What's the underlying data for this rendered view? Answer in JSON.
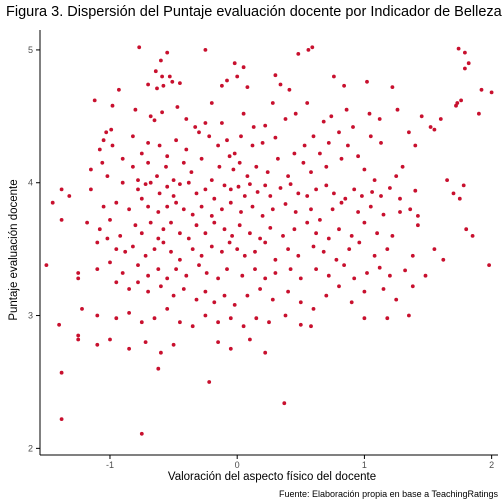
{
  "chart_data": {
    "type": "scatter",
    "title": "Figura 3. Dispersión del Puntaje evaluación docente por Indicador de Belleza",
    "xlabel": "Valoración del aspecto físico del docente",
    "ylabel": "Puntaje evaluación docente",
    "caption": "Fuente: Elaboración propia en base a TeachingRatings",
    "xlim": [
      -1.55,
      2.05
    ],
    "ylim": [
      1.95,
      5.15
    ],
    "x_ticks": [
      -1,
      0,
      1,
      2
    ],
    "y_ticks": [
      2,
      3,
      4,
      5
    ],
    "x_tick_labels": [
      "-1",
      "0",
      "1",
      "2"
    ],
    "y_tick_labels": [
      "2",
      "3",
      "4",
      "5"
    ],
    "grid": false,
    "point_color": "#C8102E",
    "points": [
      [
        -0.25,
        5.0
      ],
      [
        -0.02,
        4.9
      ],
      [
        0.05,
        4.87
      ],
      [
        0.3,
        4.81
      ],
      [
        0.48,
        4.97
      ],
      [
        0.56,
        5.0
      ],
      [
        0.59,
        5.02
      ],
      [
        1.74,
        5.01
      ],
      [
        1.79,
        4.98
      ],
      [
        1.82,
        4.9
      ],
      [
        -0.77,
        5.02
      ],
      [
        -0.55,
        4.98
      ],
      [
        -0.6,
        4.92
      ],
      [
        -0.64,
        4.84
      ],
      [
        -0.59,
        4.8
      ],
      [
        -0.53,
        4.8
      ],
      [
        -0.51,
        4.76
      ],
      [
        -0.58,
        4.73
      ],
      [
        -0.63,
        4.71
      ],
      [
        -0.7,
        4.74
      ],
      [
        -0.12,
        4.73
      ],
      [
        -0.08,
        4.77
      ],
      [
        0.0,
        4.8
      ],
      [
        0.08,
        4.72
      ],
      [
        0.34,
        4.74
      ],
      [
        0.41,
        4.7
      ],
      [
        0.76,
        4.8
      ],
      [
        0.84,
        4.73
      ],
      [
        1.02,
        4.76
      ],
      [
        1.79,
        4.86
      ],
      [
        1.92,
        4.7
      ],
      [
        2.0,
        4.68
      ],
      [
        1.73,
        4.6
      ],
      [
        1.76,
        4.62
      ],
      [
        -0.93,
        4.7
      ],
      [
        -0.45,
        4.75
      ],
      [
        -0.2,
        4.6
      ],
      [
        0.28,
        4.6
      ],
      [
        0.55,
        4.6
      ],
      [
        1.22,
        4.72
      ],
      [
        -1.12,
        4.62
      ],
      [
        -0.98,
        4.58
      ],
      [
        -0.8,
        4.55
      ],
      [
        -0.68,
        4.5
      ],
      [
        -0.65,
        4.47
      ],
      [
        -0.59,
        4.53
      ],
      [
        -0.47,
        4.57
      ],
      [
        -0.4,
        4.48
      ],
      [
        -0.33,
        4.42
      ],
      [
        -0.25,
        4.45
      ],
      [
        -0.12,
        4.45
      ],
      [
        0.05,
        4.52
      ],
      [
        0.13,
        4.42
      ],
      [
        0.22,
        4.43
      ],
      [
        0.38,
        4.48
      ],
      [
        0.46,
        4.52
      ],
      [
        0.68,
        4.46
      ],
      [
        0.74,
        4.5
      ],
      [
        0.86,
        4.55
      ],
      [
        0.91,
        4.42
      ],
      [
        1.04,
        4.52
      ],
      [
        1.12,
        4.48
      ],
      [
        1.26,
        4.55
      ],
      [
        1.45,
        4.5
      ],
      [
        1.52,
        4.42
      ],
      [
        1.6,
        4.48
      ],
      [
        1.72,
        4.58
      ],
      [
        1.9,
        4.52
      ],
      [
        -1.03,
        4.38
      ],
      [
        -1.05,
        4.32
      ],
      [
        -0.99,
        4.4
      ],
      [
        -1.08,
        4.25
      ],
      [
        -0.98,
        4.28
      ],
      [
        -0.82,
        4.35
      ],
      [
        -0.75,
        4.22
      ],
      [
        -0.7,
        4.3
      ],
      [
        -0.61,
        4.28
      ],
      [
        -0.55,
        4.2
      ],
      [
        -0.48,
        4.32
      ],
      [
        -0.4,
        4.25
      ],
      [
        -0.3,
        4.38
      ],
      [
        -0.22,
        4.35
      ],
      [
        -0.15,
        4.28
      ],
      [
        -0.08,
        4.32
      ],
      [
        -0.02,
        4.22
      ],
      [
        0.03,
        4.35
      ],
      [
        0.12,
        4.28
      ],
      [
        0.2,
        4.3
      ],
      [
        0.3,
        4.34
      ],
      [
        0.45,
        4.22
      ],
      [
        0.53,
        4.28
      ],
      [
        0.6,
        4.35
      ],
      [
        0.65,
        4.22
      ],
      [
        0.72,
        4.3
      ],
      [
        0.8,
        4.38
      ],
      [
        0.87,
        4.28
      ],
      [
        0.95,
        4.2
      ],
      [
        1.05,
        4.35
      ],
      [
        1.13,
        4.3
      ],
      [
        1.35,
        4.38
      ],
      [
        1.4,
        4.28
      ],
      [
        1.55,
        4.4
      ],
      [
        -1.15,
        4.1
      ],
      [
        -1.06,
        4.15
      ],
      [
        -1.02,
        4.05
      ],
      [
        -0.9,
        4.18
      ],
      [
        -0.82,
        4.12
      ],
      [
        -0.78,
        4.02
      ],
      [
        -0.7,
        4.15
      ],
      [
        -0.63,
        4.05
      ],
      [
        -0.56,
        4.12
      ],
      [
        -0.5,
        4.02
      ],
      [
        -0.42,
        4.15
      ],
      [
        -0.36,
        4.08
      ],
      [
        -0.28,
        4.18
      ],
      [
        -0.2,
        4.02
      ],
      [
        -0.14,
        4.12
      ],
      [
        -0.06,
        4.2
      ],
      [
        -0.03,
        4.1
      ],
      [
        0.02,
        4.15
      ],
      [
        0.08,
        4.05
      ],
      [
        0.15,
        4.12
      ],
      [
        0.24,
        4.08
      ],
      [
        0.32,
        4.18
      ],
      [
        0.4,
        4.05
      ],
      [
        0.52,
        4.15
      ],
      [
        0.58,
        4.08
      ],
      [
        0.7,
        4.12
      ],
      [
        0.82,
        4.18
      ],
      [
        1.0,
        4.1
      ],
      [
        1.08,
        4.02
      ],
      [
        1.25,
        4.05
      ],
      [
        1.3,
        4.12
      ],
      [
        1.65,
        4.02
      ],
      [
        1.78,
        3.98
      ],
      [
        -1.38,
        3.95
      ],
      [
        -1.32,
        3.9
      ],
      [
        -1.15,
        3.95
      ],
      [
        -0.9,
        4.0
      ],
      [
        -0.78,
        3.95
      ],
      [
        -0.75,
        3.88
      ],
      [
        -0.72,
        3.99
      ],
      [
        -0.68,
        4.0
      ],
      [
        -0.61,
        3.92
      ],
      [
        -0.55,
        3.97
      ],
      [
        -0.5,
        3.9
      ],
      [
        -0.45,
        3.99
      ],
      [
        -0.38,
        4.0
      ],
      [
        -0.32,
        3.92
      ],
      [
        -0.25,
        3.95
      ],
      [
        -0.18,
        3.88
      ],
      [
        -0.1,
        3.98
      ],
      [
        -0.05,
        3.95
      ],
      [
        0.01,
        3.97
      ],
      [
        0.06,
        3.9
      ],
      [
        0.1,
        3.99
      ],
      [
        0.16,
        3.93
      ],
      [
        0.22,
        3.98
      ],
      [
        0.26,
        3.9
      ],
      [
        0.34,
        3.96
      ],
      [
        0.42,
        3.99
      ],
      [
        0.48,
        3.92
      ],
      [
        0.55,
        3.9
      ],
      [
        0.62,
        3.95
      ],
      [
        0.7,
        3.98
      ],
      [
        0.76,
        3.92
      ],
      [
        0.85,
        3.88
      ],
      [
        0.92,
        3.95
      ],
      [
        0.98,
        3.9
      ],
      [
        1.06,
        3.93
      ],
      [
        1.13,
        3.9
      ],
      [
        1.2,
        3.96
      ],
      [
        1.28,
        3.88
      ],
      [
        1.4,
        3.94
      ],
      [
        1.7,
        3.92
      ],
      [
        1.75,
        3.88
      ],
      [
        -1.45,
        3.85
      ],
      [
        -1.05,
        3.82
      ],
      [
        -0.95,
        3.85
      ],
      [
        -0.85,
        3.8
      ],
      [
        -0.7,
        3.82
      ],
      [
        -0.62,
        3.78
      ],
      [
        -0.55,
        3.82
      ],
      [
        -0.48,
        3.85
      ],
      [
        -0.42,
        3.8
      ],
      [
        -0.35,
        3.76
      ],
      [
        -0.28,
        3.82
      ],
      [
        -0.2,
        3.75
      ],
      [
        -0.12,
        3.8
      ],
      [
        -0.05,
        3.85
      ],
      [
        0.03,
        3.78
      ],
      [
        0.12,
        3.82
      ],
      [
        0.2,
        3.75
      ],
      [
        0.28,
        3.8
      ],
      [
        0.38,
        3.84
      ],
      [
        0.46,
        3.78
      ],
      [
        0.58,
        3.8
      ],
      [
        0.65,
        3.72
      ],
      [
        0.75,
        3.8
      ],
      [
        0.82,
        3.85
      ],
      [
        0.95,
        3.78
      ],
      [
        1.05,
        3.82
      ],
      [
        1.15,
        3.76
      ],
      [
        1.28,
        3.78
      ],
      [
        1.36,
        3.8
      ],
      [
        1.42,
        3.75
      ],
      [
        -1.38,
        3.72
      ],
      [
        -1.18,
        3.7
      ],
      [
        -1.08,
        3.65
      ],
      [
        -1.0,
        3.72
      ],
      [
        -0.92,
        3.6
      ],
      [
        -0.8,
        3.68
      ],
      [
        -0.75,
        3.62
      ],
      [
        -0.68,
        3.7
      ],
      [
        -0.62,
        3.58
      ],
      [
        -0.58,
        3.65
      ],
      [
        -0.52,
        3.7
      ],
      [
        -0.45,
        3.62
      ],
      [
        -0.38,
        3.58
      ],
      [
        -0.32,
        3.68
      ],
      [
        -0.25,
        3.62
      ],
      [
        -0.18,
        3.7
      ],
      [
        -0.1,
        3.65
      ],
      [
        -0.04,
        3.6
      ],
      [
        0.02,
        3.68
      ],
      [
        0.1,
        3.62
      ],
      [
        0.18,
        3.58
      ],
      [
        0.26,
        3.66
      ],
      [
        0.36,
        3.6
      ],
      [
        0.45,
        3.65
      ],
      [
        0.55,
        3.7
      ],
      [
        0.62,
        3.62
      ],
      [
        0.72,
        3.58
      ],
      [
        0.8,
        3.65
      ],
      [
        0.9,
        3.6
      ],
      [
        1.0,
        3.7
      ],
      [
        1.1,
        3.62
      ],
      [
        1.22,
        3.6
      ],
      [
        1.42,
        3.68
      ],
      [
        1.8,
        3.65
      ],
      [
        -1.1,
        3.55
      ],
      [
        -1.02,
        3.58
      ],
      [
        -0.95,
        3.5
      ],
      [
        -0.88,
        3.48
      ],
      [
        -0.82,
        3.52
      ],
      [
        -0.72,
        3.45
      ],
      [
        -0.65,
        3.5
      ],
      [
        -0.58,
        3.55
      ],
      [
        -0.52,
        3.48
      ],
      [
        -0.45,
        3.42
      ],
      [
        -0.35,
        3.5
      ],
      [
        -0.28,
        3.45
      ],
      [
        -0.2,
        3.52
      ],
      [
        -0.12,
        3.48
      ],
      [
        -0.06,
        3.55
      ],
      [
        0.0,
        3.5
      ],
      [
        0.06,
        3.45
      ],
      [
        0.14,
        3.48
      ],
      [
        0.22,
        3.55
      ],
      [
        0.3,
        3.42
      ],
      [
        0.4,
        3.5
      ],
      [
        0.48,
        3.45
      ],
      [
        0.6,
        3.52
      ],
      [
        0.68,
        3.48
      ],
      [
        0.78,
        3.42
      ],
      [
        0.88,
        3.5
      ],
      [
        0.96,
        3.55
      ],
      [
        1.08,
        3.45
      ],
      [
        1.18,
        3.5
      ],
      [
        1.38,
        3.45
      ],
      [
        1.55,
        3.5
      ],
      [
        1.62,
        3.42
      ],
      [
        1.85,
        3.6
      ],
      [
        1.98,
        3.38
      ],
      [
        -1.5,
        3.38
      ],
      [
        -1.25,
        3.32
      ],
      [
        -1.1,
        3.35
      ],
      [
        -1.0,
        3.4
      ],
      [
        -0.9,
        3.32
      ],
      [
        -0.78,
        3.38
      ],
      [
        -0.7,
        3.3
      ],
      [
        -0.62,
        3.35
      ],
      [
        -0.55,
        3.28
      ],
      [
        -0.48,
        3.35
      ],
      [
        -0.4,
        3.3
      ],
      [
        -0.3,
        3.38
      ],
      [
        -0.24,
        3.32
      ],
      [
        -0.15,
        3.28
      ],
      [
        -0.08,
        3.35
      ],
      [
        0.04,
        3.3
      ],
      [
        0.14,
        3.35
      ],
      [
        0.22,
        3.28
      ],
      [
        0.3,
        3.32
      ],
      [
        0.42,
        3.35
      ],
      [
        0.5,
        3.28
      ],
      [
        0.62,
        3.35
      ],
      [
        0.72,
        3.3
      ],
      [
        0.84,
        3.38
      ],
      [
        0.92,
        3.28
      ],
      [
        1.02,
        3.32
      ],
      [
        1.12,
        3.36
      ],
      [
        1.2,
        3.3
      ],
      [
        1.32,
        3.34
      ],
      [
        1.48,
        3.3
      ],
      [
        -1.25,
        3.28
      ],
      [
        -0.95,
        3.25
      ],
      [
        -0.85,
        3.2
      ],
      [
        -0.78,
        3.25
      ],
      [
        -0.7,
        3.18
      ],
      [
        -0.6,
        3.22
      ],
      [
        -0.5,
        3.15
      ],
      [
        -0.42,
        3.2
      ],
      [
        -0.32,
        3.12
      ],
      [
        -0.25,
        3.18
      ],
      [
        -0.18,
        3.1
      ],
      [
        -0.1,
        3.15
      ],
      [
        -0.02,
        3.08
      ],
      [
        0.08,
        3.15
      ],
      [
        0.18,
        3.2
      ],
      [
        0.28,
        3.12
      ],
      [
        0.4,
        3.18
      ],
      [
        0.5,
        3.1
      ],
      [
        0.6,
        3.05
      ],
      [
        0.7,
        3.15
      ],
      [
        0.8,
        3.22
      ],
      [
        0.9,
        3.1
      ],
      [
        1.0,
        3.18
      ],
      [
        1.15,
        3.2
      ],
      [
        1.25,
        3.12
      ],
      [
        1.38,
        3.22
      ],
      [
        -1.4,
        2.93
      ],
      [
        -1.22,
        3.05
      ],
      [
        -1.1,
        3.0
      ],
      [
        -0.95,
        2.98
      ],
      [
        -0.85,
        3.02
      ],
      [
        -0.75,
        2.95
      ],
      [
        -0.65,
        2.98
      ],
      [
        -0.55,
        3.05
      ],
      [
        -0.45,
        2.95
      ],
      [
        -0.35,
        2.92
      ],
      [
        -0.25,
        3.0
      ],
      [
        -0.15,
        2.95
      ],
      [
        -0.05,
        2.98
      ],
      [
        0.05,
        2.92
      ],
      [
        0.15,
        2.98
      ],
      [
        0.25,
        2.95
      ],
      [
        0.38,
        3.0
      ],
      [
        0.5,
        2.93
      ],
      [
        0.58,
        2.92
      ],
      [
        1.0,
        2.98
      ],
      [
        1.18,
        2.98
      ],
      [
        1.35,
        3.0
      ],
      [
        -1.25,
        2.85
      ],
      [
        -1.1,
        2.78
      ],
      [
        -1.0,
        2.82
      ],
      [
        -0.85,
        2.75
      ],
      [
        -0.72,
        2.8
      ],
      [
        -0.6,
        2.72
      ],
      [
        -0.5,
        2.78
      ],
      [
        -0.15,
        2.8
      ],
      [
        -0.05,
        2.75
      ],
      [
        0.1,
        2.82
      ],
      [
        0.22,
        2.72
      ],
      [
        -1.25,
        2.82
      ],
      [
        -0.62,
        2.6
      ],
      [
        -1.38,
        2.57
      ],
      [
        -0.22,
        2.5
      ],
      [
        0.37,
        2.34
      ],
      [
        -1.38,
        2.22
      ],
      [
        -0.75,
        2.11
      ]
    ]
  }
}
